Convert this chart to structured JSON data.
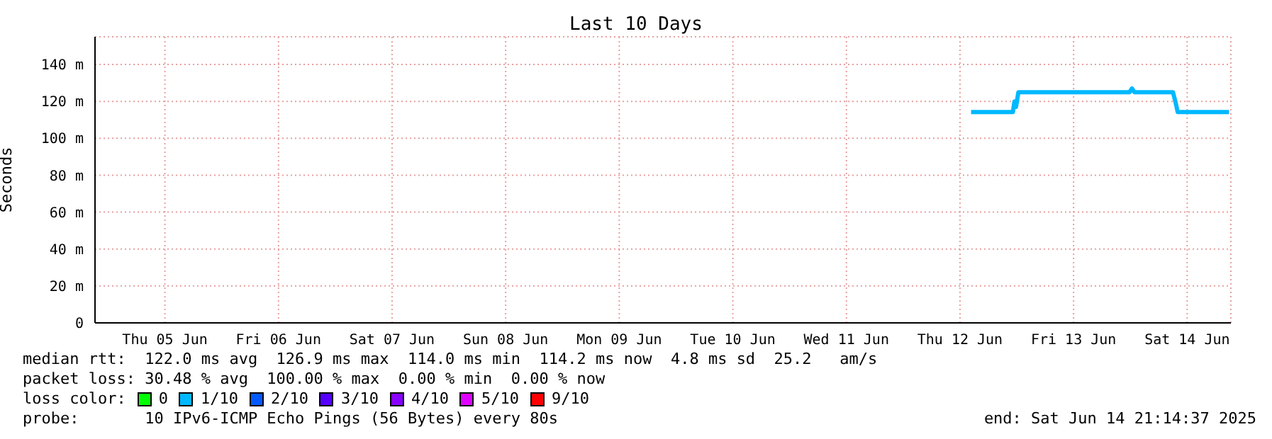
{
  "chart_data": {
    "type": "line",
    "title": "Last 10 Days",
    "ylabel": "Seconds",
    "x": [
      "2025-06-12T14:20",
      "2025-06-12T18:00",
      "2025-06-12T23:10",
      "2025-06-12T23:30",
      "2025-06-12T23:50",
      "2025-06-13T00:20",
      "2025-06-13T12:00",
      "2025-06-13T23:50",
      "2025-06-14T00:20",
      "2025-06-14T00:50",
      "2025-06-14T09:00",
      "2025-06-14T09:30",
      "2025-06-14T10:00",
      "2025-06-14T20:50"
    ],
    "series": [
      {
        "color": "#00b8ff",
        "values": [
          114.2,
          114.2,
          114.2,
          120,
          117,
          125,
          125,
          125,
          127,
          125,
          125,
          120,
          114.2,
          114.2
        ]
      }
    ],
    "xlim": [
      "2025-06-04T21:14",
      "2025-06-14T21:14"
    ],
    "xticks": [
      {
        "value": "2025-06-05T12:00",
        "label": "Thu 05 Jun"
      },
      {
        "value": "2025-06-06T12:00",
        "label": "Fri 06 Jun"
      },
      {
        "value": "2025-06-07T12:00",
        "label": "Sat 07 Jun"
      },
      {
        "value": "2025-06-08T12:00",
        "label": "Sun 08 Jun"
      },
      {
        "value": "2025-06-09T12:00",
        "label": "Mon 09 Jun"
      },
      {
        "value": "2025-06-10T12:00",
        "label": "Tue 10 Jun"
      },
      {
        "value": "2025-06-11T12:00",
        "label": "Wed 11 Jun"
      },
      {
        "value": "2025-06-12T12:00",
        "label": "Thu 12 Jun"
      },
      {
        "value": "2025-06-13T12:00",
        "label": "Fri 13 Jun"
      },
      {
        "value": "2025-06-14T12:00",
        "label": "Sat 14 Jun"
      }
    ],
    "ylim": [
      0,
      155
    ],
    "yticks": [
      0,
      {
        "value": 20,
        "label": "20 m"
      },
      {
        "value": 40,
        "label": "40 m"
      },
      {
        "value": 60,
        "label": "60 m"
      },
      {
        "value": 80,
        "label": "80 m"
      },
      {
        "value": 100,
        "label": "100 m"
      },
      {
        "value": 120,
        "label": "120 m"
      },
      {
        "value": 140,
        "label": "140 m"
      }
    ],
    "grid": true,
    "annotations": [
      "median rtt:  122.0 ms avg  126.9 ms max  114.0 ms min  114.2 ms now  4.8 ms sd  25.2   am/s",
      "packet loss: 30.48 % avg  100.00 % max  0.00 % min  0.00 % now",
      "loss color:  0  1/10  2/10  3/10  4/10  5/10  9/10",
      "probe:       10 IPv6-ICMP Echo Pings (56 Bytes) every 80s",
      "end: Sat Jun 14 21:14:37 2025"
    ]
  }
}
